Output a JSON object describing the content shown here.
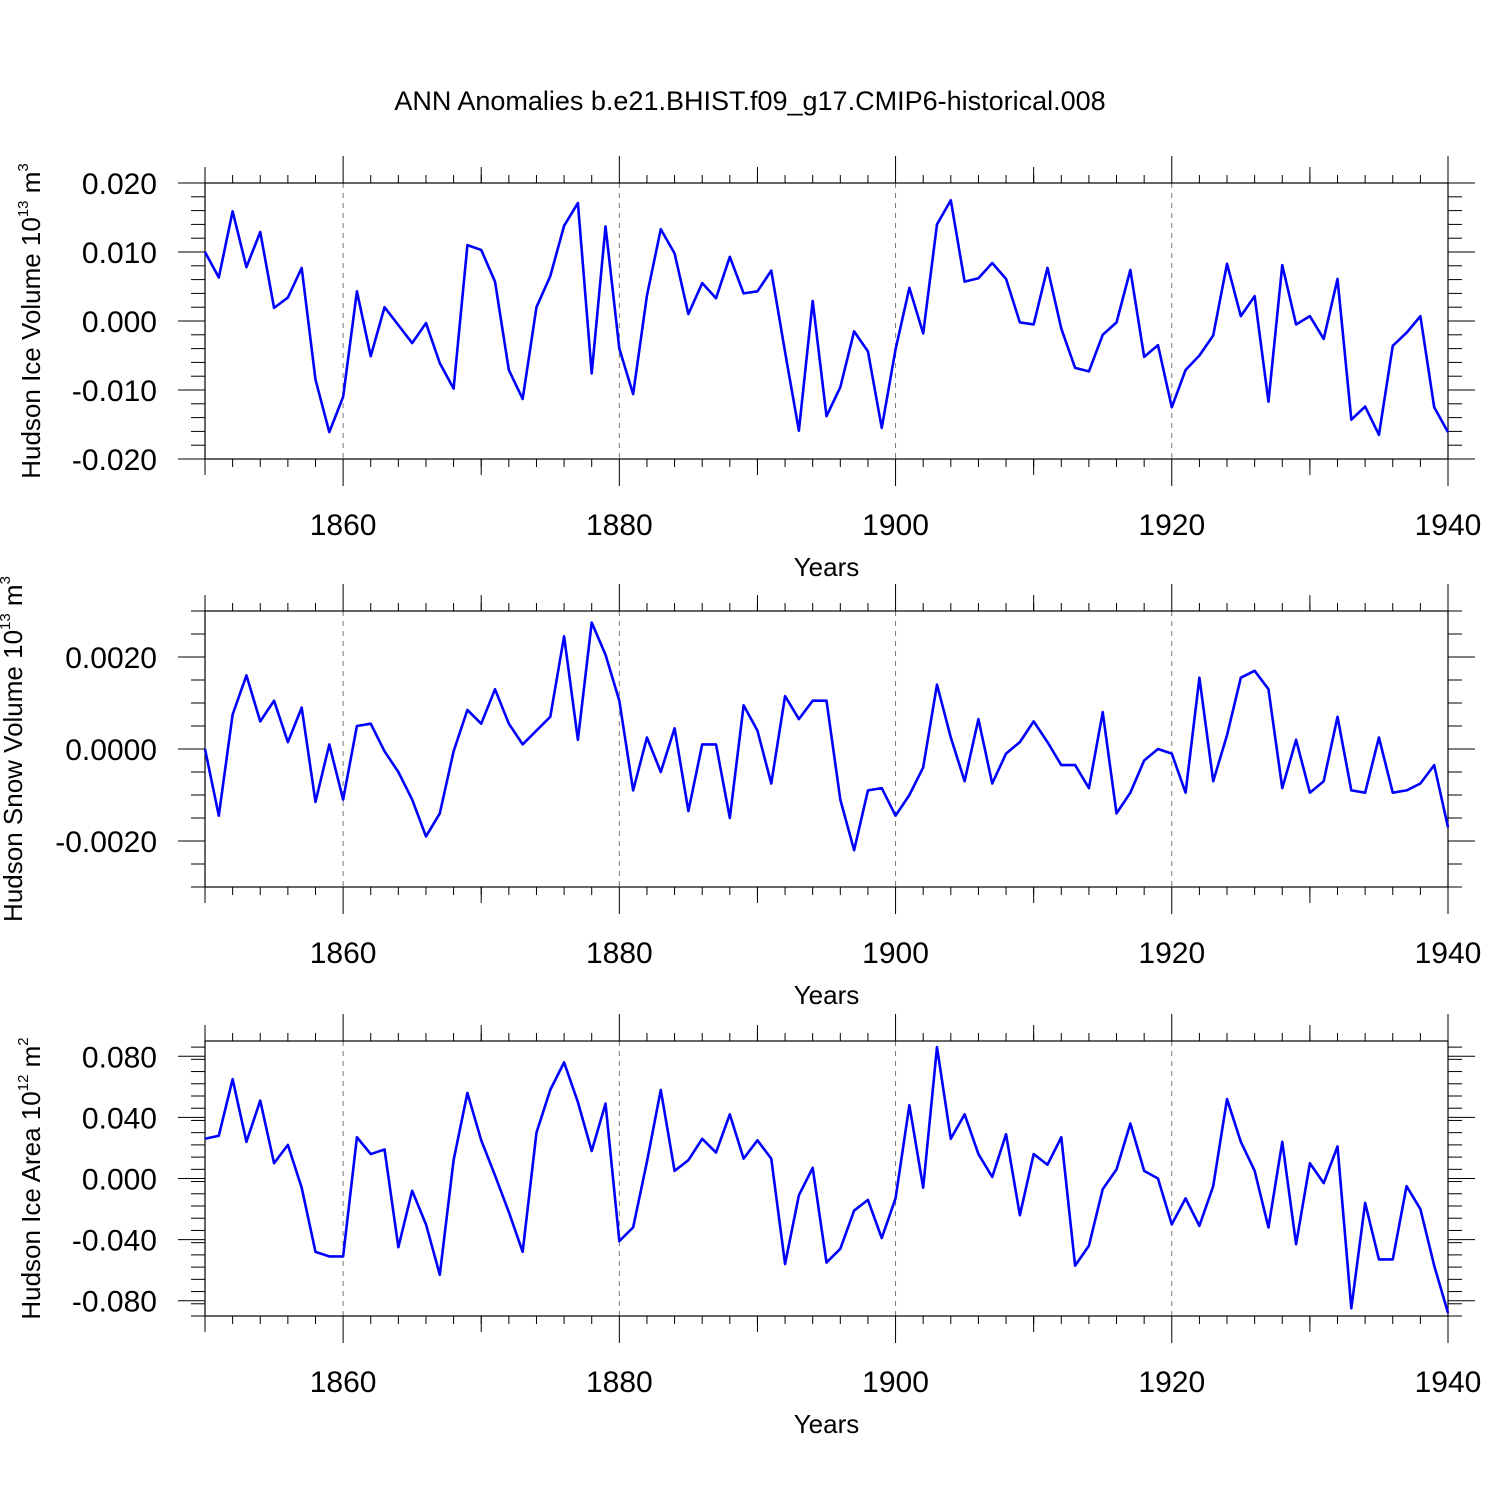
{
  "title": "ANN Anomalies b.e21.BHIST.f09_g17.CMIP6-historical.008",
  "colors": {
    "line": "#0000ff",
    "axis": "#000000",
    "grid": "#777777"
  },
  "chart_data": [
    {
      "type": "line",
      "ylabel_main": "Hudson Ice Volume 10",
      "ylabel_exp": "13",
      "ylabel_unit": "m",
      "ylabel_unit_exp": "3",
      "xlabel": "Years",
      "xlim": [
        1850,
        1940
      ],
      "ylim": [
        -0.02,
        0.02
      ],
      "x_ticks": [
        1860,
        1880,
        1900,
        1920,
        1940
      ],
      "x_tick_labels": [
        "1860",
        "1880",
        "1900",
        "1920",
        "1940"
      ],
      "y_ticks": [
        -0.02,
        -0.01,
        0.0,
        0.01,
        0.02
      ],
      "y_tick_labels": [
        "-0.020",
        "-0.010",
        "0.000",
        "0.010",
        "0.020"
      ],
      "y_minor_step": 0.002,
      "gridlines_x": [
        1860,
        1880,
        1900,
        1920
      ],
      "x_start": 1850,
      "values": [
        0.01,
        0.0063,
        0.0159,
        0.0078,
        0.0129,
        0.0019,
        0.0034,
        0.0077,
        -0.0085,
        -0.0161,
        -0.011,
        0.0043,
        -0.0051,
        0.002,
        -0.0006,
        -0.0032,
        -0.0003,
        -0.0061,
        -0.0098,
        0.011,
        0.0103,
        0.0057,
        -0.0071,
        -0.0113,
        0.002,
        0.0065,
        0.0138,
        0.0171,
        -0.0076,
        0.0137,
        -0.004,
        -0.0106,
        0.0037,
        0.0133,
        0.0098,
        0.001,
        0.0055,
        0.0033,
        0.0093,
        0.004,
        0.0043,
        0.0073,
        -0.0045,
        -0.0159,
        0.0029,
        -0.0138,
        -0.0096,
        -0.0015,
        -0.0044,
        -0.0155,
        -0.0041,
        0.0048,
        -0.0018,
        0.014,
        0.0175,
        0.0057,
        0.0062,
        0.0084,
        0.0061,
        -0.0002,
        -0.0005,
        0.0077,
        -0.0011,
        -0.0068,
        -0.0073,
        -0.002,
        -0.0002,
        0.0074,
        -0.0052,
        -0.0035,
        -0.0125,
        -0.0071,
        -0.005,
        -0.0021,
        0.0083,
        0.0007,
        0.0036,
        -0.0117,
        0.0081,
        -0.0005,
        0.0007,
        -0.0026,
        0.0061,
        -0.0143,
        -0.0124,
        -0.0165,
        -0.0036,
        -0.0017,
        0.0007,
        -0.0125,
        -0.0161
      ]
    },
    {
      "type": "line",
      "ylabel_main": "Hudson Snow Volume 10",
      "ylabel_exp": "13",
      "ylabel_unit": "m",
      "ylabel_unit_exp": "3",
      "xlabel": "Years",
      "xlim": [
        1850,
        1940
      ],
      "ylim": [
        -0.003,
        0.003
      ],
      "x_ticks": [
        1860,
        1880,
        1900,
        1920,
        1940
      ],
      "x_tick_labels": [
        "1860",
        "1880",
        "1900",
        "1920",
        "1940"
      ],
      "y_ticks": [
        -0.002,
        0.0,
        0.002
      ],
      "y_tick_labels": [
        "-0.0020",
        "0.0000",
        "0.0020"
      ],
      "y_minor_step": 0.0005,
      "gridlines_x": [
        1860,
        1880,
        1900,
        1920
      ],
      "x_start": 1850,
      "values": [
        0.0,
        -0.00145,
        0.00075,
        0.0016,
        0.0006,
        0.00105,
        0.00015,
        0.0009,
        -0.00115,
        0.0001,
        -0.0011,
        0.0005,
        0.00055,
        -5e-05,
        -0.0005,
        -0.0011,
        -0.0019,
        -0.0014,
        -5e-05,
        0.00085,
        0.00055,
        0.0013,
        0.00055,
        0.0001,
        0.0004,
        0.0007,
        0.00245,
        0.0002,
        0.00275,
        0.00205,
        0.00105,
        -0.0009,
        0.00025,
        -0.0005,
        0.00045,
        -0.00135,
        0.0001,
        0.0001,
        -0.0015,
        0.00095,
        0.0004,
        -0.00075,
        0.00115,
        0.00065,
        0.00105,
        0.00105,
        -0.0011,
        -0.0022,
        -0.0009,
        -0.00085,
        -0.00145,
        -0.001,
        -0.0004,
        0.0014,
        0.00025,
        -0.0007,
        0.00065,
        -0.00075,
        -0.0001,
        0.00015,
        0.0006,
        0.00015,
        -0.00035,
        -0.00035,
        -0.00085,
        0.0008,
        -0.0014,
        -0.00095,
        -0.00025,
        0.0,
        -0.0001,
        -0.00095,
        0.00155,
        -0.0007,
        0.0003,
        0.00155,
        0.0017,
        0.0013,
        -0.00085,
        0.0002,
        -0.00095,
        -0.0007,
        0.0007,
        -0.0009,
        -0.00095,
        0.00025,
        -0.00095,
        -0.0009,
        -0.00075,
        -0.00035,
        -0.0017
      ]
    },
    {
      "type": "line",
      "ylabel_main": "Hudson Ice Area 10",
      "ylabel_exp": "12",
      "ylabel_unit": "m",
      "ylabel_unit_exp": "2",
      "xlabel": "Years",
      "xlim": [
        1850,
        1940
      ],
      "ylim": [
        -0.09,
        0.09
      ],
      "x_ticks": [
        1860,
        1880,
        1900,
        1920,
        1940
      ],
      "x_tick_labels": [
        "1860",
        "1880",
        "1900",
        "1920",
        "1940"
      ],
      "y_ticks": [
        -0.08,
        -0.04,
        0.0,
        0.04,
        0.08
      ],
      "y_tick_labels": [
        "-0.080",
        "-0.040",
        "0.000",
        "0.040",
        "0.080"
      ],
      "y_minor_step": 0.008,
      "gridlines_x": [
        1860,
        1880,
        1900,
        1920
      ],
      "x_start": 1850,
      "values": [
        0.026,
        0.028,
        0.065,
        0.024,
        0.051,
        0.01,
        0.022,
        -0.006,
        -0.048,
        -0.051,
        -0.051,
        0.027,
        0.016,
        0.019,
        -0.045,
        -0.008,
        -0.03,
        -0.063,
        0.012,
        0.056,
        0.025,
        0.002,
        -0.022,
        -0.048,
        0.03,
        0.058,
        0.076,
        0.05,
        0.018,
        0.049,
        -0.041,
        -0.032,
        0.011,
        0.058,
        0.005,
        0.012,
        0.026,
        0.017,
        0.042,
        0.013,
        0.025,
        0.013,
        -0.056,
        -0.011,
        0.007,
        -0.055,
        -0.046,
        -0.021,
        -0.014,
        -0.039,
        -0.013,
        0.048,
        -0.006,
        0.086,
        0.026,
        0.042,
        0.016,
        0.001,
        0.029,
        -0.024,
        0.016,
        0.009,
        0.027,
        -0.057,
        -0.044,
        -0.007,
        0.006,
        0.036,
        0.005,
        0.0,
        -0.03,
        -0.013,
        -0.031,
        -0.005,
        0.052,
        0.024,
        0.005,
        -0.032,
        0.024,
        -0.043,
        0.01,
        -0.003,
        0.021,
        -0.085,
        -0.016,
        -0.053,
        -0.053,
        -0.005,
        -0.02,
        -0.057,
        -0.088
      ]
    }
  ]
}
